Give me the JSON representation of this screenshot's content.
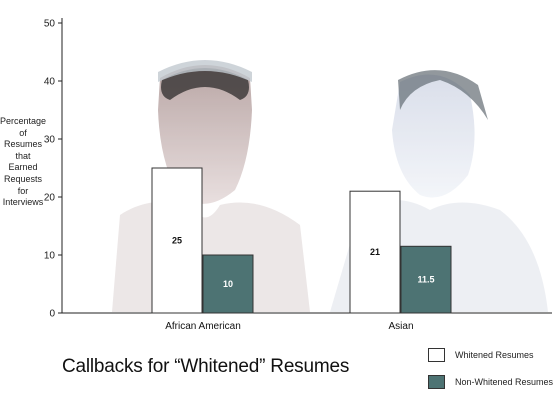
{
  "chart_data": {
    "type": "bar",
    "title": "Callbacks for “Whitened” Resumes",
    "ylabel_lines": [
      "Percentage",
      "of",
      "Resumes",
      "that",
      "Earned",
      "Requests",
      "for",
      "Interviews"
    ],
    "xlabel": "",
    "ylim": [
      0,
      50
    ],
    "yticks": [
      0,
      10,
      20,
      30,
      40,
      50
    ],
    "categories": [
      "African American",
      "Asian"
    ],
    "series": [
      {
        "name": "Whitened Resumes",
        "values": [
          25,
          21
        ],
        "color": "#ffffff",
        "label_color": "#111111"
      },
      {
        "name": "Non-Whitened Resumes",
        "values": [
          10,
          11.5
        ],
        "color": "#4d7373",
        "label_color": "#ffffff"
      }
    ],
    "data_labels": [
      [
        "25",
        "21"
      ],
      [
        "10",
        "11.5"
      ]
    ],
    "grid": false,
    "legend_position": "bottom-right"
  },
  "legend": {
    "items": [
      {
        "label": "Whitened Resumes",
        "color": "#ffffff"
      },
      {
        "label": "Non-Whitened Resumes",
        "color": "#4d7373"
      }
    ]
  }
}
